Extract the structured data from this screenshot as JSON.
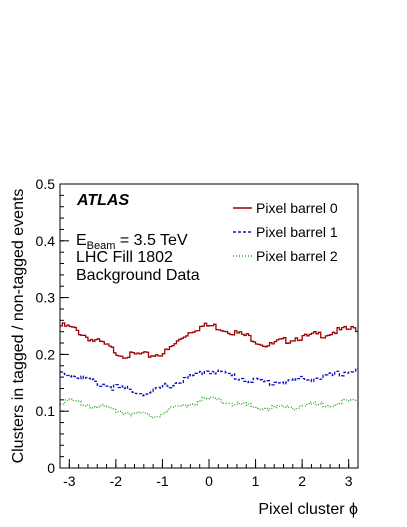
{
  "chart_data": {
    "type": "line",
    "title": "",
    "xlabel": "Pixel cluster ϕ",
    "ylabel": "Clusters in tagged / non-tagged events",
    "xlim": [
      -3.2,
      3.2
    ],
    "ylim": [
      0,
      0.5
    ],
    "x_ticks": [
      "-3",
      "-2",
      "-1",
      "0",
      "1",
      "2",
      "3"
    ],
    "x_tick_values": [
      -3,
      -2,
      -1,
      0,
      1,
      2,
      3
    ],
    "y_ticks": [
      "0",
      "0.1",
      "0.2",
      "0.3",
      "0.4",
      "0.5"
    ],
    "y_tick_values": [
      0,
      0.1,
      0.2,
      0.3,
      0.4,
      0.5
    ],
    "grid": false,
    "legend_position": "top-right",
    "annotations": {
      "experiment": "ATLAS",
      "beam_label": "E",
      "beam_sub": "Beam",
      "beam_value": " = 3.5 TeV",
      "fill": "LHC Fill 1802",
      "sample": "Background Data"
    },
    "series": [
      {
        "name": "Pixel barrel 0",
        "color": "#a00000",
        "style": "solid",
        "x": [
          -3.1,
          -2.9,
          -2.7,
          -2.5,
          -2.3,
          -2.1,
          -1.9,
          -1.7,
          -1.5,
          -1.3,
          -1.1,
          -0.9,
          -0.7,
          -0.5,
          -0.3,
          -0.1,
          0.1,
          0.3,
          0.5,
          0.7,
          0.9,
          1.1,
          1.3,
          1.5,
          1.7,
          1.9,
          2.1,
          2.3,
          2.5,
          2.7,
          2.9,
          3.1
        ],
        "values": [
          0.25,
          0.245,
          0.235,
          0.225,
          0.22,
          0.21,
          0.2,
          0.198,
          0.2,
          0.198,
          0.2,
          0.205,
          0.22,
          0.235,
          0.245,
          0.25,
          0.25,
          0.245,
          0.24,
          0.235,
          0.23,
          0.22,
          0.215,
          0.222,
          0.225,
          0.23,
          0.23,
          0.235,
          0.235,
          0.24,
          0.243,
          0.245
        ]
      },
      {
        "name": "Pixel barrel 1",
        "color": "#1010c0",
        "style": "dashed",
        "x": [
          -3.1,
          -2.9,
          -2.7,
          -2.5,
          -2.3,
          -2.1,
          -1.9,
          -1.7,
          -1.5,
          -1.3,
          -1.1,
          -0.9,
          -0.7,
          -0.5,
          -0.3,
          -0.1,
          0.1,
          0.3,
          0.5,
          0.7,
          0.9,
          1.1,
          1.3,
          1.5,
          1.7,
          1.9,
          2.1,
          2.3,
          2.5,
          2.7,
          2.9,
          3.1
        ],
        "values": [
          0.168,
          0.163,
          0.158,
          0.152,
          0.148,
          0.143,
          0.14,
          0.137,
          0.134,
          0.13,
          0.137,
          0.145,
          0.15,
          0.157,
          0.162,
          0.17,
          0.172,
          0.167,
          0.162,
          0.158,
          0.155,
          0.152,
          0.15,
          0.152,
          0.152,
          0.155,
          0.157,
          0.158,
          0.16,
          0.163,
          0.168,
          0.172
        ]
      },
      {
        "name": "Pixel barrel 2",
        "color": "#2ca02c",
        "style": "dotted",
        "x": [
          -3.1,
          -2.9,
          -2.7,
          -2.5,
          -2.3,
          -2.1,
          -1.9,
          -1.7,
          -1.5,
          -1.3,
          -1.1,
          -0.9,
          -0.7,
          -0.5,
          -0.3,
          -0.1,
          0.1,
          0.3,
          0.5,
          0.7,
          0.9,
          1.1,
          1.3,
          1.5,
          1.7,
          1.9,
          2.1,
          2.3,
          2.5,
          2.7,
          2.9,
          3.1
        ],
        "values": [
          0.118,
          0.115,
          0.113,
          0.11,
          0.107,
          0.104,
          0.1,
          0.098,
          0.096,
          0.09,
          0.095,
          0.1,
          0.105,
          0.11,
          0.115,
          0.12,
          0.12,
          0.117,
          0.114,
          0.111,
          0.108,
          0.106,
          0.105,
          0.106,
          0.107,
          0.109,
          0.11,
          0.111,
          0.112,
          0.114,
          0.116,
          0.117
        ]
      }
    ]
  }
}
